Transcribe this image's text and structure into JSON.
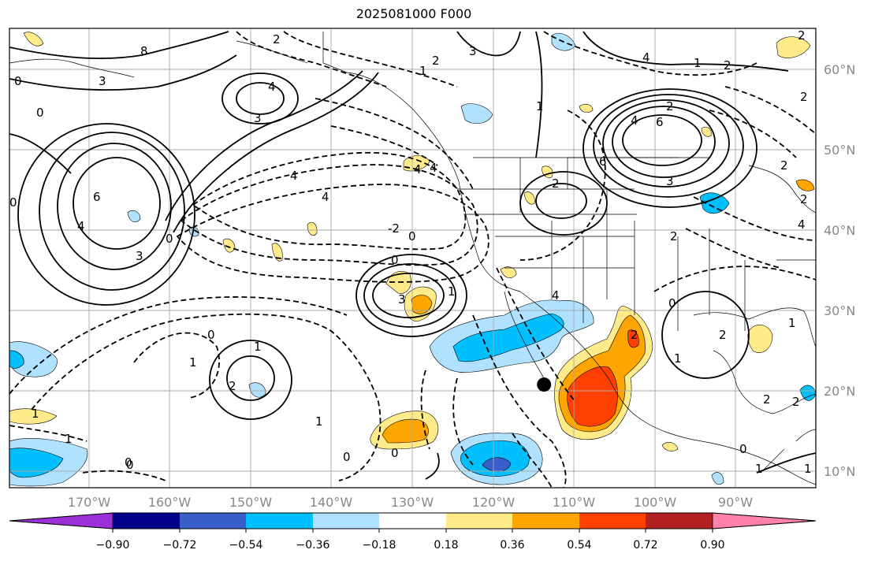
{
  "title": "2025081000 F000",
  "map": {
    "lon_range": [
      -180,
      -80
    ],
    "lat_range": [
      8,
      65
    ],
    "lon_ticks": [
      "170°W",
      "160°W",
      "150°W",
      "140°W",
      "130°W",
      "120°W",
      "110°W",
      "100°W",
      "90°W"
    ],
    "lat_ticks": [
      "60°N",
      "50°N",
      "40°N",
      "30°N",
      "20°N",
      "10°N"
    ],
    "grid": true,
    "marker": {
      "lon": -113.7,
      "lat": 20.8,
      "symbol": "filled-circle"
    }
  },
  "colorbar": {
    "extend": "both",
    "colors": [
      "#9b30d9",
      "#00008b",
      "#3a5fcd",
      "#00bfff",
      "#b0e2ff",
      "#ffffff",
      "#ffeb8a",
      "#ffa500",
      "#ff4000",
      "#b22222",
      "#ff82ab"
    ],
    "tick_labels": [
      "−0.90",
      "−0.72",
      "−0.54",
      "−0.36",
      "−0.18",
      "0.18",
      "0.36",
      "0.54",
      "0.72",
      "0.90"
    ]
  },
  "contour_labels": [
    "0",
    "2",
    "6",
    "8",
    "4",
    "3",
    "0",
    "2",
    "3",
    "4",
    "-2",
    "2",
    "3",
    "2",
    "4",
    "1",
    "2",
    "4",
    "6",
    "3",
    "0",
    "3",
    "6",
    "4",
    "0",
    "2",
    "4",
    "2",
    "4",
    "2",
    "4",
    "2",
    "0",
    "0",
    "3",
    "4",
    "0",
    "1",
    "2",
    "1",
    "0",
    "1",
    "2",
    "1",
    "2",
    "1",
    "0",
    "1",
    "0",
    "4",
    "2",
    "0",
    "1",
    "1",
    "2",
    "1",
    "1",
    "2",
    "0",
    "1",
    "0",
    "1"
  ]
}
